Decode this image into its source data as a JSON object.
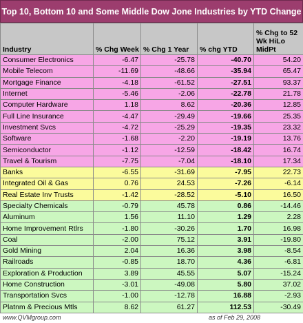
{
  "title": "Top 10, Bottom 10 and Some Middle Dow Jone Industries by YTD Change",
  "headers": {
    "industry": "Industry",
    "week": "% Chg Week",
    "year": "% Chg 1 Year",
    "ytd": "% chg YTD",
    "hilo": "% Chg to 52 Wk HiLo MidPt"
  },
  "rows": [
    {
      "group": "top",
      "industry": "Consumer Electronics",
      "week": "-6.47",
      "year": "-25.78",
      "ytd": "-40.70",
      "hilo": "54.20"
    },
    {
      "group": "top",
      "industry": "Mobile Telecom",
      "week": "-11.69",
      "year": "-48.66",
      "ytd": "-35.94",
      "hilo": "65.47"
    },
    {
      "group": "top",
      "industry": "Mortgage Finance",
      "week": "-4.18",
      "year": "-61.52",
      "ytd": "-27.51",
      "hilo": "93.37"
    },
    {
      "group": "top",
      "industry": "Internet",
      "week": "-5.46",
      "year": "-2.06",
      "ytd": "-22.78",
      "hilo": "21.78"
    },
    {
      "group": "top",
      "industry": "Computer Hardware",
      "week": "1.18",
      "year": "8.62",
      "ytd": "-20.36",
      "hilo": "12.85"
    },
    {
      "group": "top",
      "industry": "Full Line Insurance",
      "week": "-4.47",
      "year": "-29.49",
      "ytd": "-19.66",
      "hilo": "25.35"
    },
    {
      "group": "top",
      "industry": "Investment Svcs",
      "week": "-4.72",
      "year": "-25.29",
      "ytd": "-19.35",
      "hilo": "23.32"
    },
    {
      "group": "top",
      "industry": "Software",
      "week": "-1.68",
      "year": "-2.20",
      "ytd": "-19.19",
      "hilo": "13.76"
    },
    {
      "group": "top",
      "industry": "Semiconductor",
      "week": "-1.12",
      "year": "-12.59",
      "ytd": "-18.42",
      "hilo": "16.74"
    },
    {
      "group": "top",
      "industry": "Travel & Tourism",
      "week": "-7.75",
      "year": "-7.04",
      "ytd": "-18.10",
      "hilo": "17.34"
    },
    {
      "group": "mid",
      "industry": "Banks",
      "week": "-6.55",
      "year": "-31.69",
      "ytd": "-7.95",
      "hilo": "22.73"
    },
    {
      "group": "mid",
      "industry": "Integrated Oil & Gas",
      "week": "0.76",
      "year": "24.53",
      "ytd": "-7.26",
      "hilo": "-6.14"
    },
    {
      "group": "mid",
      "industry": "Real Estate Inv Trusts",
      "week": "-1.42",
      "year": "-28.52",
      "ytd": "-5.10",
      "hilo": "16.50"
    },
    {
      "group": "bot",
      "industry": "Specialty Chemicals",
      "week": "-0.79",
      "year": "45.78",
      "ytd": "0.86",
      "hilo": "-14.46"
    },
    {
      "group": "bot",
      "industry": "Aluminum",
      "week": "1.56",
      "year": "11.10",
      "ytd": "1.29",
      "hilo": "2.28"
    },
    {
      "group": "bot",
      "industry": "Home Improvement Rtlrs",
      "week": "-1.80",
      "year": "-30.26",
      "ytd": "1.70",
      "hilo": "16.98"
    },
    {
      "group": "bot",
      "industry": "Coal",
      "week": "-2.00",
      "year": "75.12",
      "ytd": "3.91",
      "hilo": "-19.80"
    },
    {
      "group": "bot",
      "industry": "Gold Mining",
      "week": "2.04",
      "year": "16.36",
      "ytd": "3.98",
      "hilo": "-8.54"
    },
    {
      "group": "bot",
      "industry": "Railroads",
      "week": "-0.85",
      "year": "18.70",
      "ytd": "4.36",
      "hilo": "-6.81"
    },
    {
      "group": "bot",
      "industry": "Exploration & Production",
      "week": "3.89",
      "year": "45.55",
      "ytd": "5.07",
      "hilo": "-15.24"
    },
    {
      "group": "bot",
      "industry": "Home Construction",
      "week": "-3.01",
      "year": "-49.08",
      "ytd": "5.80",
      "hilo": "37.02"
    },
    {
      "group": "bot",
      "industry": "Transportation Svcs",
      "week": "-1.00",
      "year": "-12.78",
      "ytd": "16.88",
      "hilo": "-2.93"
    },
    {
      "group": "bot",
      "industry": "Platnm & Precious Mtls",
      "week": "8.62",
      "year": "61.27",
      "ytd": "112.53",
      "hilo": "-30.49"
    }
  ],
  "footer": {
    "source": "www.QVMgroup.com",
    "date": "as of Feb 29, 2008"
  },
  "colors": {
    "title_bg": "#9c3d6e",
    "top_rows": "#f7a6e6",
    "middle_rows": "#fbfb9c",
    "bottom_rows": "#ccf7c0",
    "header_bg": "#c7c7c7"
  }
}
